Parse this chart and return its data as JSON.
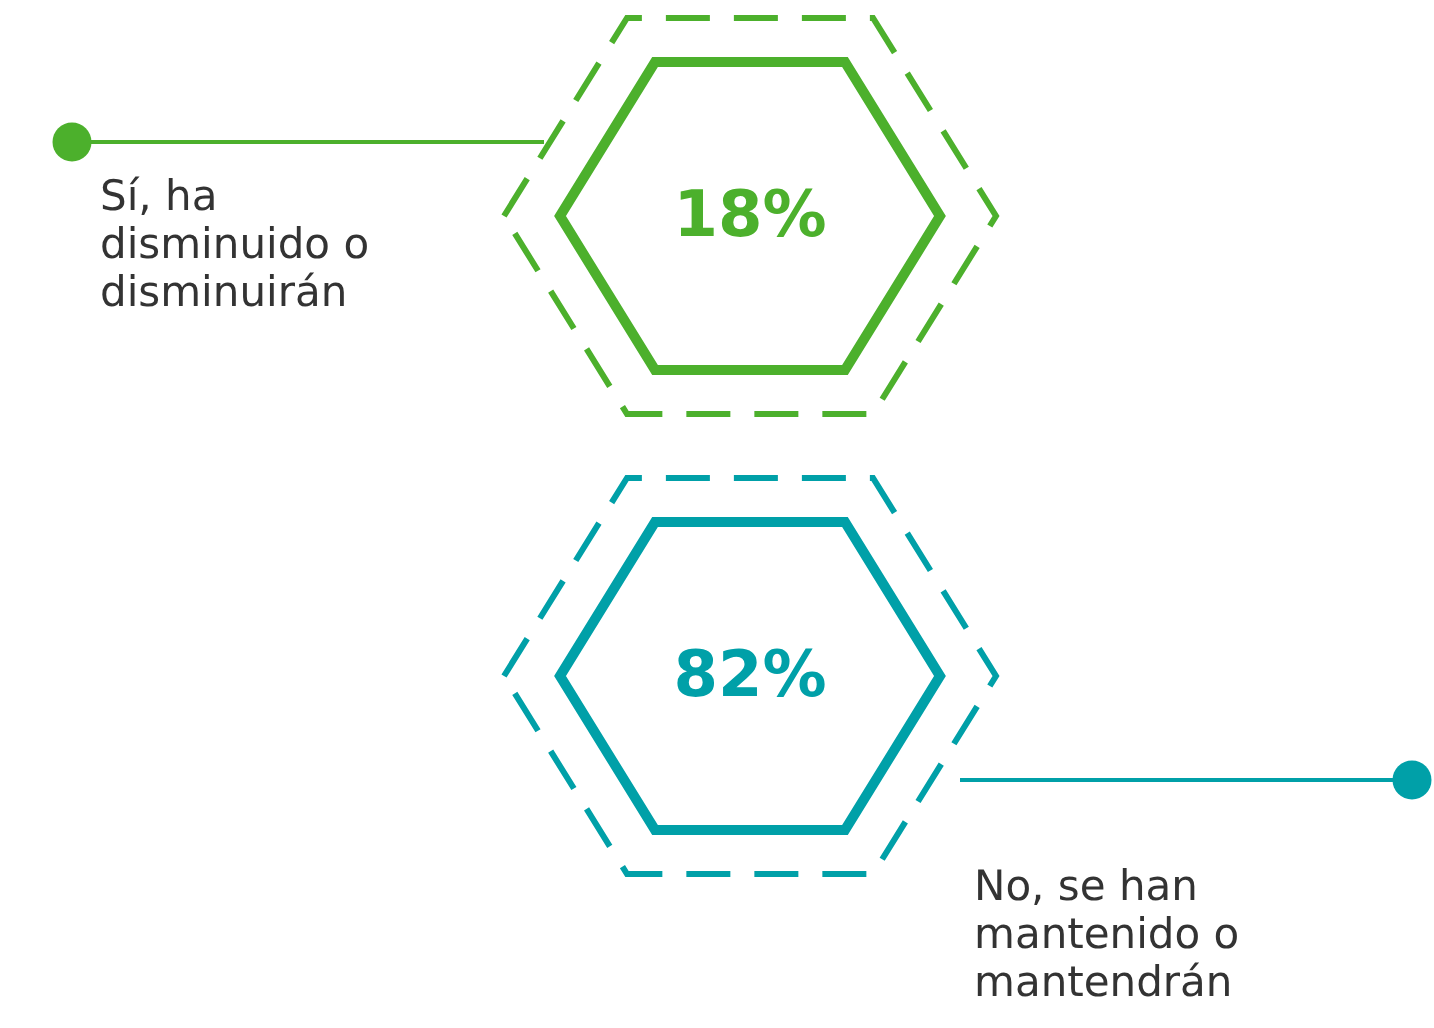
{
  "chart_data": {
    "type": "other",
    "categories": [
      "Sí, ha\ndisminuido o\ndisminuirán",
      "No, se han\nmantenido o\nmantendrán"
    ],
    "values": [
      18,
      82
    ],
    "value_labels": [
      "18%",
      "82%"
    ],
    "colors": [
      "#4cb02c",
      "#00a0a8"
    ]
  }
}
